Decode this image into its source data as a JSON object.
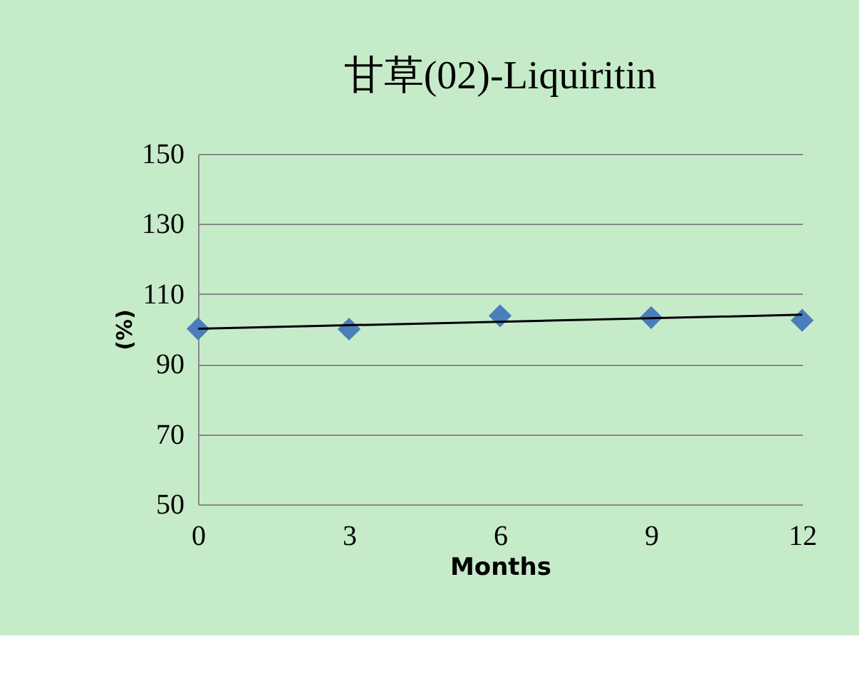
{
  "chart_data": {
    "type": "scatter",
    "title": "甘草(02)-Liquiritin",
    "xlabel": "Months",
    "ylabel": "(%)",
    "x": [
      0,
      3,
      6,
      9,
      12
    ],
    "series": [
      {
        "color": "#4a7ebb",
        "marker": "diamond",
        "values": [
          100.1,
          100,
          103.8,
          103.3,
          102.5
        ]
      },
      {
        "type": "line",
        "color": "#000000",
        "marker": "none",
        "x": [
          0,
          12
        ],
        "values": [
          100.1,
          104.1
        ]
      }
    ],
    "xlim": [
      0,
      12
    ],
    "xticks": [
      0,
      3,
      6,
      9,
      12
    ],
    "ylim": [
      50,
      150
    ],
    "yticks": [
      50,
      70,
      90,
      110,
      130,
      150
    ],
    "grid": "y"
  }
}
